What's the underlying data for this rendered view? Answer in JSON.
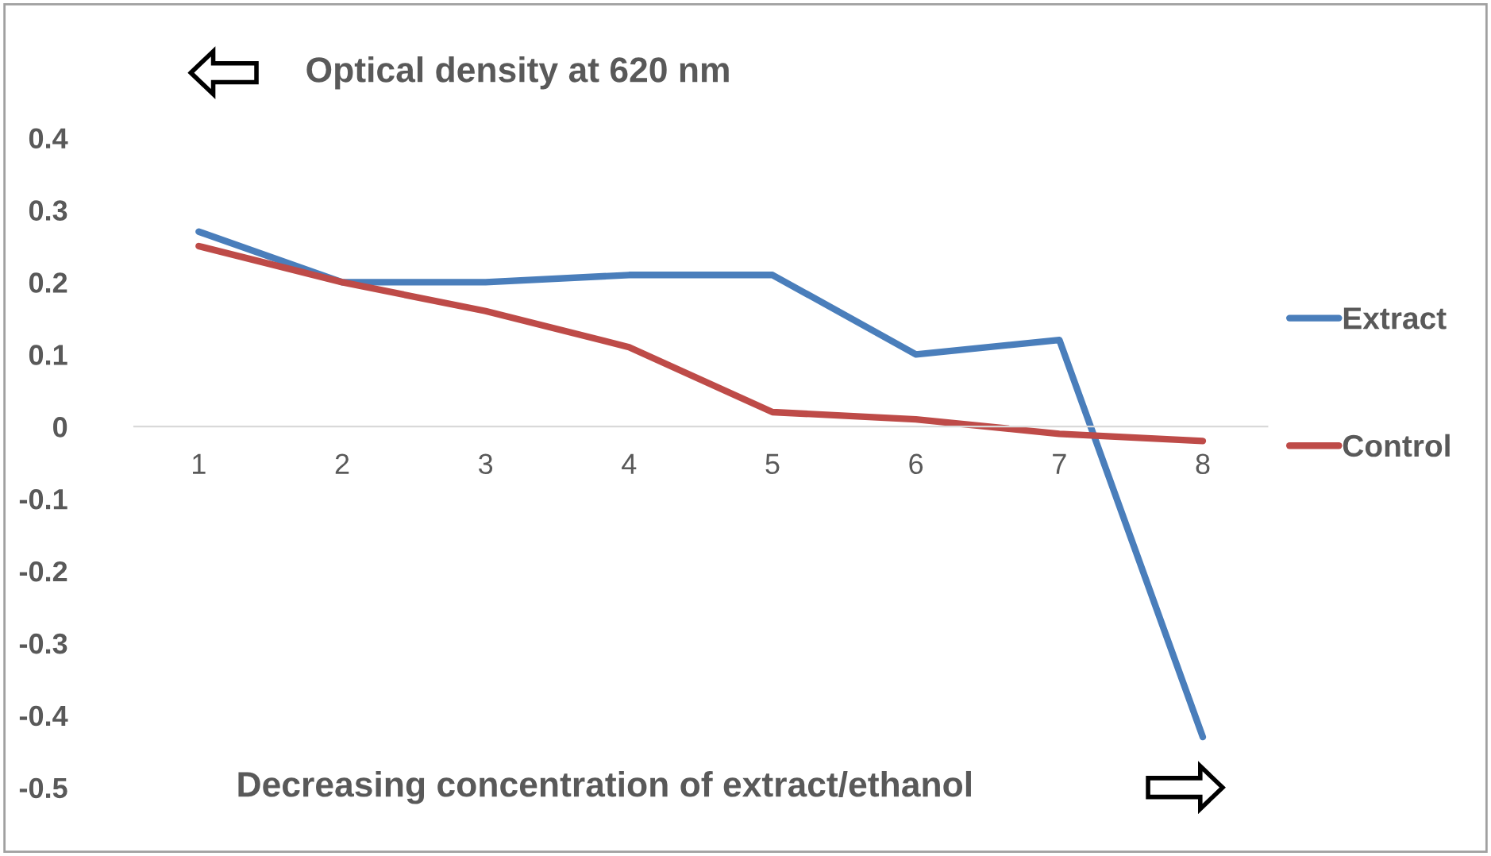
{
  "chart_data": {
    "type": "line",
    "xlabel": "Decreasing concentration of extract/ethanol",
    "ylabel": "Optical density at 620 nm",
    "categories": [
      "1",
      "2",
      "3",
      "4",
      "5",
      "6",
      "7",
      "8"
    ],
    "series": [
      {
        "name": "Extract",
        "color": "#4a7ebb",
        "values": [
          0.27,
          0.2,
          0.2,
          0.21,
          0.21,
          0.1,
          0.12,
          -0.43
        ]
      },
      {
        "name": "Control",
        "color": "#be4b48",
        "values": [
          0.25,
          0.2,
          0.16,
          0.11,
          0.02,
          0.01,
          -0.01,
          -0.02
        ]
      }
    ],
    "ylim": [
      -0.5,
      0.4
    ],
    "yticks": [
      -0.5,
      -0.4,
      -0.3,
      -0.2,
      -0.1,
      0,
      0.1,
      0.2,
      0.3,
      0.4
    ],
    "grid": false,
    "legend": "right",
    "line_style": "solid",
    "marker": "none"
  }
}
